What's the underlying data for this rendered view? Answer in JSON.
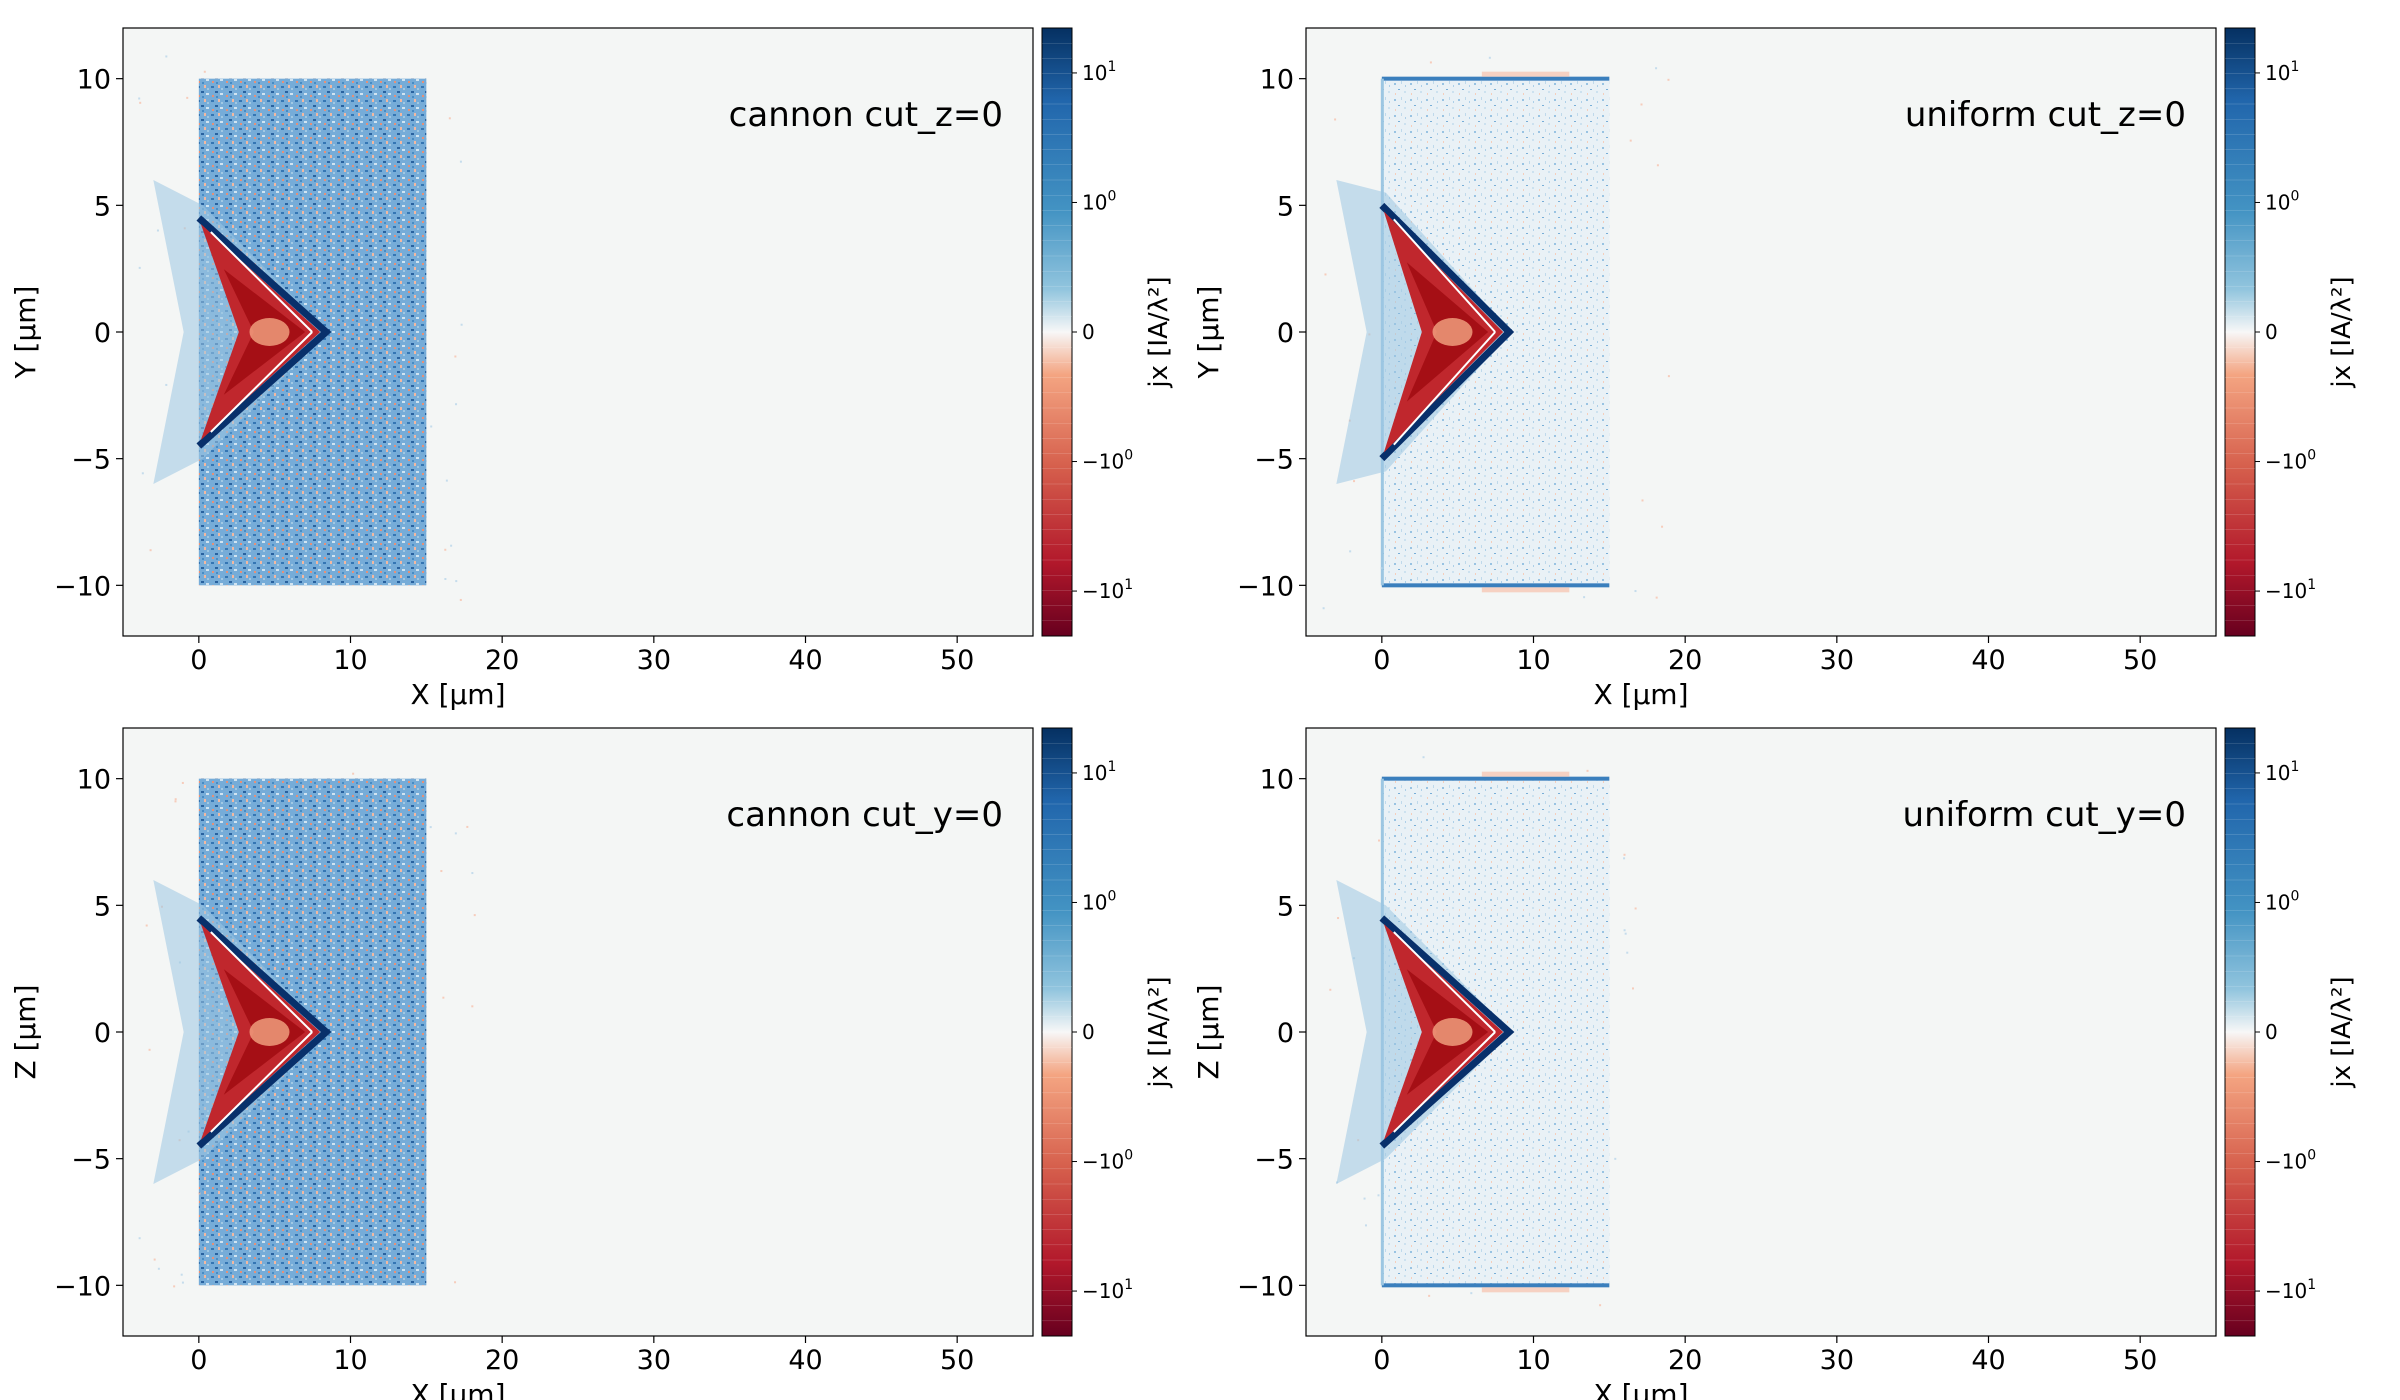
{
  "colors": {
    "background": "#f4f6f5",
    "neg_strong": "#67001f",
    "neg_mid": "#d6604d",
    "neg_light": "#fddbc7",
    "zero": "#f7f7f7",
    "pos_light": "#d1e5f0",
    "pos_mid": "#4393c3",
    "pos_strong": "#053061"
  },
  "chart_data": [
    {
      "type": "heatmap",
      "title": "cannon cut_z=0",
      "xlabel": "X  [μm]",
      "ylabel": "Y  [μm]",
      "xlim": [
        -5,
        55
      ],
      "ylim": [
        -12,
        12
      ],
      "xticks": [
        0,
        10,
        20,
        30,
        40,
        50
      ],
      "yticks": [
        -10,
        -5,
        0,
        5,
        10
      ],
      "xtick_labels": [
        "0",
        "10",
        "20",
        "30",
        "40",
        "50"
      ],
      "ytick_labels": [
        "−10",
        "−5",
        "0",
        "5",
        "10"
      ],
      "colorbar": {
        "label": "jx  [IA/λ²]",
        "scale": "symlog",
        "ticks": [
          {
            "value": 10,
            "base": "10",
            "exp": "1",
            "neg": false
          },
          {
            "value": 1,
            "base": "10",
            "exp": "0",
            "neg": false
          },
          {
            "value": 0,
            "base": "0",
            "exp": "",
            "neg": false
          },
          {
            "value": -1,
            "base": "10",
            "exp": "0",
            "neg": true
          },
          {
            "value": -10,
            "base": "10",
            "exp": "1",
            "neg": true
          }
        ]
      },
      "target": {
        "x_range": [
          0,
          15
        ],
        "y_range": [
          -10,
          10
        ],
        "fill": "dense-noise",
        "edge_bands": false
      },
      "shock_front": {
        "tip_x": 8,
        "half_width": 4.5,
        "base_x": 0
      }
    },
    {
      "type": "heatmap",
      "title": "uniform cut_z=0",
      "xlabel": "X  [μm]",
      "ylabel": "Y  [μm]",
      "xlim": [
        -5,
        55
      ],
      "ylim": [
        -12,
        12
      ],
      "xticks": [
        0,
        10,
        20,
        30,
        40,
        50
      ],
      "yticks": [
        -10,
        -5,
        0,
        5,
        10
      ],
      "xtick_labels": [
        "0",
        "10",
        "20",
        "30",
        "40",
        "50"
      ],
      "ytick_labels": [
        "−10",
        "−5",
        "0",
        "5",
        "10"
      ],
      "colorbar": {
        "label": "jx  [IA/λ²]",
        "scale": "symlog",
        "ticks": [
          {
            "value": 10,
            "base": "10",
            "exp": "1",
            "neg": false
          },
          {
            "value": 1,
            "base": "10",
            "exp": "0",
            "neg": false
          },
          {
            "value": 0,
            "base": "0",
            "exp": "",
            "neg": false
          },
          {
            "value": -1,
            "base": "10",
            "exp": "0",
            "neg": true
          },
          {
            "value": -10,
            "base": "10",
            "exp": "1",
            "neg": true
          }
        ]
      },
      "target": {
        "x_range": [
          0,
          15
        ],
        "y_range": [
          -10,
          10
        ],
        "fill": "sparse-noise",
        "edge_bands": true
      },
      "shock_front": {
        "tip_x": 8,
        "half_width": 5,
        "base_x": 0
      }
    },
    {
      "type": "heatmap",
      "title": "cannon cut_y=0",
      "xlabel": "X  [μm]",
      "ylabel": "Z  [μm]",
      "xlim": [
        -5,
        55
      ],
      "ylim": [
        -12,
        12
      ],
      "xticks": [
        0,
        10,
        20,
        30,
        40,
        50
      ],
      "yticks": [
        -10,
        -5,
        0,
        5,
        10
      ],
      "xtick_labels": [
        "0",
        "10",
        "20",
        "30",
        "40",
        "50"
      ],
      "ytick_labels": [
        "−10",
        "−5",
        "0",
        "5",
        "10"
      ],
      "colorbar": {
        "label": "jx  [IA/λ²]",
        "scale": "symlog",
        "ticks": [
          {
            "value": 10,
            "base": "10",
            "exp": "1",
            "neg": false
          },
          {
            "value": 1,
            "base": "10",
            "exp": "0",
            "neg": false
          },
          {
            "value": 0,
            "base": "0",
            "exp": "",
            "neg": false
          },
          {
            "value": -1,
            "base": "10",
            "exp": "0",
            "neg": true
          },
          {
            "value": -10,
            "base": "10",
            "exp": "1",
            "neg": true
          }
        ]
      },
      "target": {
        "x_range": [
          0,
          15
        ],
        "y_range": [
          -10,
          10
        ],
        "fill": "dense-noise",
        "edge_bands": false
      },
      "shock_front": {
        "tip_x": 8,
        "half_width": 4.5,
        "base_x": 0
      }
    },
    {
      "type": "heatmap",
      "title": "uniform cut_y=0",
      "xlabel": "X  [μm]",
      "ylabel": "Z  [μm]",
      "xlim": [
        -5,
        55
      ],
      "ylim": [
        -12,
        12
      ],
      "xticks": [
        0,
        10,
        20,
        30,
        40,
        50
      ],
      "yticks": [
        -10,
        -5,
        0,
        5,
        10
      ],
      "xtick_labels": [
        "0",
        "10",
        "20",
        "30",
        "40",
        "50"
      ],
      "ytick_labels": [
        "−10",
        "−5",
        "0",
        "5",
        "10"
      ],
      "colorbar": {
        "label": "jx  [IA/λ²]",
        "scale": "symlog",
        "ticks": [
          {
            "value": 10,
            "base": "10",
            "exp": "1",
            "neg": false
          },
          {
            "value": 1,
            "base": "10",
            "exp": "0",
            "neg": false
          },
          {
            "value": 0,
            "base": "0",
            "exp": "",
            "neg": false
          },
          {
            "value": -1,
            "base": "10",
            "exp": "0",
            "neg": true
          },
          {
            "value": -10,
            "base": "10",
            "exp": "1",
            "neg": true
          }
        ]
      },
      "target": {
        "x_range": [
          0,
          15
        ],
        "y_range": [
          -10,
          10
        ],
        "fill": "sparse-noise",
        "edge_bands": true
      },
      "shock_front": {
        "tip_x": 8,
        "half_width": 4.5,
        "base_x": 0
      }
    }
  ]
}
